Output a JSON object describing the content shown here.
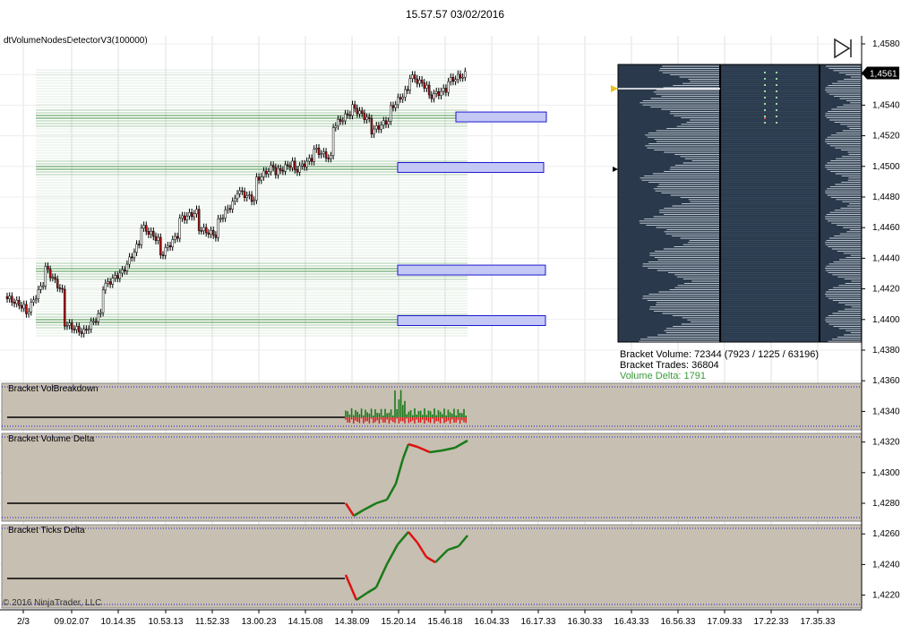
{
  "title": "15.57.57 03/02/2016",
  "indicator": "dtVolumeNodesDetectorV3(100000)",
  "copyright": "© 2016 NinjaTrader, LLC",
  "colors": {
    "panel_bg": "#c7bfb1",
    "profile_bg": "#2a3a4c",
    "node_green": "#1f7a1f",
    "node_box": "#c4c8f4",
    "node_box_border": "#1a1acc",
    "up_bar": "#1a7a1a",
    "down_bar": "#dd1111",
    "delta_text": "#3a9a3a"
  },
  "play_button_icon": "skip-to-end-icon",
  "bracket_info": {
    "volume": "Bracket Volume: 72344 (7923 / 1225 / 63196)",
    "trades": "Bracket Trades: 36804",
    "delta": "Volume Delta: 1791"
  },
  "panels": {
    "p1": "Bracket VolBreakdown",
    "p2": "Bracket Volume Delta",
    "p3": "Bracket Ticks Delta"
  },
  "chart_data": {
    "type": "candlestick",
    "y_ticks": [
      "1,4580",
      "1,4560",
      "1,4540",
      "1,4520",
      "1,4500",
      "1,4480",
      "1,4460",
      "1,4440",
      "1,4420",
      "1,4400",
      "1,4380",
      "1,4360",
      "1,4340",
      "1,4320",
      "1,4300",
      "1,4280",
      "1,4260",
      "1,4240",
      "1,4220"
    ],
    "ylim": [
      1.4375,
      1.4585
    ],
    "current_price": "1,4561",
    "x_ticks": [
      "2/3",
      "09.02.07",
      "10.14.35",
      "10.53.13",
      "11.52.33",
      "13.00.23",
      "14.15.08",
      "14.38.09",
      "15.20.14",
      "15.46.18",
      "16.04.33",
      "16.17.33",
      "16.30.33",
      "16.43.33",
      "16.56.33",
      "17.09.33",
      "17.22.33",
      "17.35.33"
    ],
    "volume_node_levels": [
      1.4532,
      1.4499,
      1.4432,
      1.4399
    ],
    "price_path": [
      [
        1.4415,
        1.4408
      ],
      [
        1.4401,
        1.4424
      ],
      [
        1.4436,
        1.4418
      ],
      [
        1.4398,
        1.4392
      ],
      [
        1.439,
        1.4404
      ],
      [
        1.442,
        1.443
      ],
      [
        1.4428,
        1.445
      ],
      [
        1.4462,
        1.4452
      ],
      [
        1.444,
        1.4455
      ],
      [
        1.4465,
        1.447
      ],
      [
        1.446,
        1.4455
      ],
      [
        1.4462,
        1.4478
      ],
      [
        1.4485,
        1.4478
      ],
      [
        1.449,
        1.45
      ],
      [
        1.4495,
        1.4502
      ],
      [
        1.4496,
        1.4505
      ],
      [
        1.4512,
        1.4505
      ],
      [
        1.4525,
        1.4535
      ],
      [
        1.454,
        1.453
      ],
      [
        1.4522,
        1.453
      ],
      [
        1.4536,
        1.455
      ],
      [
        1.456,
        1.4552
      ],
      [
        1.4545,
        1.455
      ],
      [
        1.4555,
        1.456
      ]
    ]
  }
}
